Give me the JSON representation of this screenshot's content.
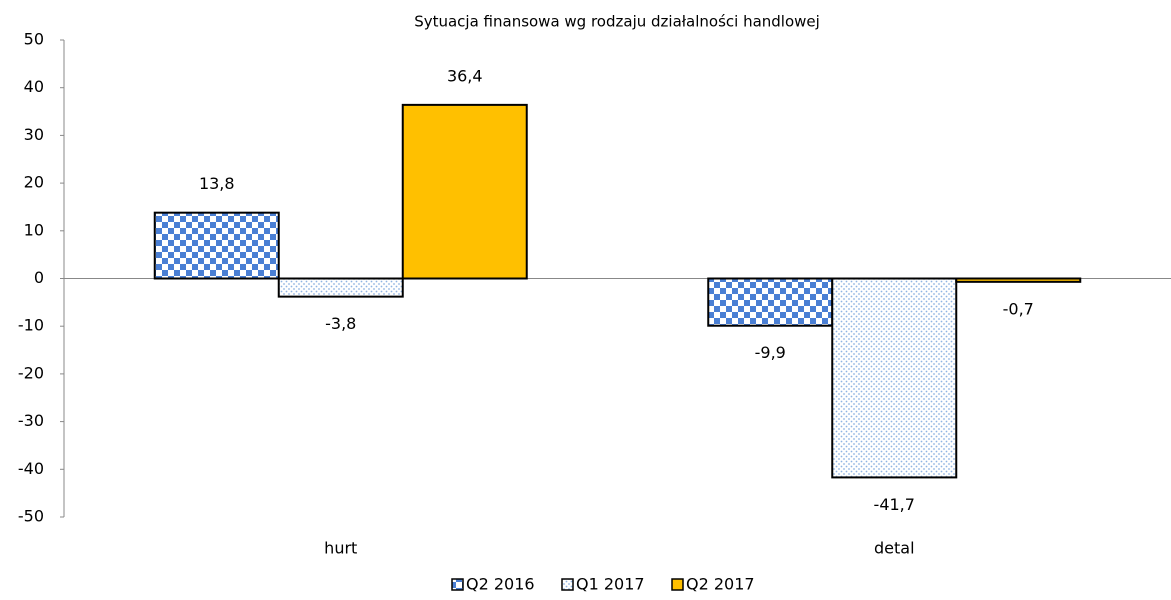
{
  "chart_data": {
    "type": "bar",
    "title": "Sytuacja finansowa wg rodzaju działalności handlowej",
    "categories": [
      "hurt",
      "detal"
    ],
    "series": [
      {
        "name": "Q2 2016",
        "color": "#4a7fd4",
        "pattern": "checker",
        "values": [
          13.8,
          -9.9
        ],
        "value_labels": [
          "13,8",
          "-9,9"
        ]
      },
      {
        "name": "Q1 2017",
        "color": "#8fb4e3",
        "pattern": "dots",
        "values": [
          -3.8,
          -41.7
        ],
        "value_labels": [
          "-3,8",
          "-41,7"
        ]
      },
      {
        "name": "Q2 2017",
        "color": "#ffc000",
        "pattern": "solid",
        "values": [
          36.4,
          -0.7
        ],
        "value_labels": [
          "36,4",
          "-0,7"
        ]
      }
    ],
    "ylim": [
      -50,
      50
    ],
    "yticks": [
      -50,
      -40,
      -30,
      -20,
      -10,
      0,
      10,
      20,
      30,
      40,
      50
    ],
    "grid": false,
    "legend": "bottom"
  }
}
